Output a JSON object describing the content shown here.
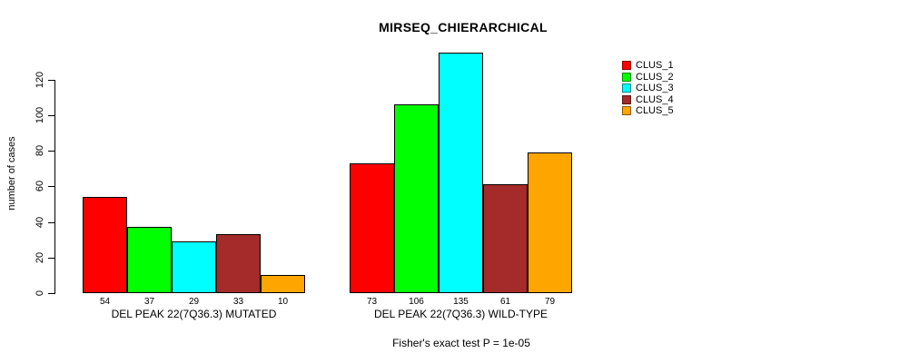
{
  "title": "MIRSEQ_CHIERARCHICAL",
  "footnote": "Fisher's exact test P = 1e-05",
  "chart_data": {
    "type": "bar",
    "title": "MIRSEQ_CHIERARCHICAL",
    "subtitle": "Fisher's exact test P = 1e-05",
    "xlabel": "",
    "ylabel": "number of cases",
    "ylim": [
      0,
      135
    ],
    "yticks": [
      0,
      20,
      40,
      60,
      80,
      100,
      120
    ],
    "grid": false,
    "legend_position": "top-right",
    "categories": [
      "DEL PEAK 22(7Q36.3) MUTATED",
      "DEL PEAK 22(7Q36.3) WILD-TYPE"
    ],
    "series": [
      {
        "name": "CLUS_1",
        "color": "#FF0000",
        "values": [
          54,
          73
        ]
      },
      {
        "name": "CLUS_2",
        "color": "#00FF00",
        "values": [
          37,
          106
        ]
      },
      {
        "name": "CLUS_3",
        "color": "#00FFFF",
        "values": [
          29,
          135
        ]
      },
      {
        "name": "CLUS_4",
        "color": "#A52A2A",
        "values": [
          33,
          61
        ]
      },
      {
        "name": "CLUS_5",
        "color": "#FFA500",
        "values": [
          10,
          79
        ]
      }
    ],
    "bar_value_labels": [
      [
        54,
        37,
        29,
        33,
        10
      ],
      [
        73,
        106,
        135,
        61,
        79
      ]
    ]
  }
}
